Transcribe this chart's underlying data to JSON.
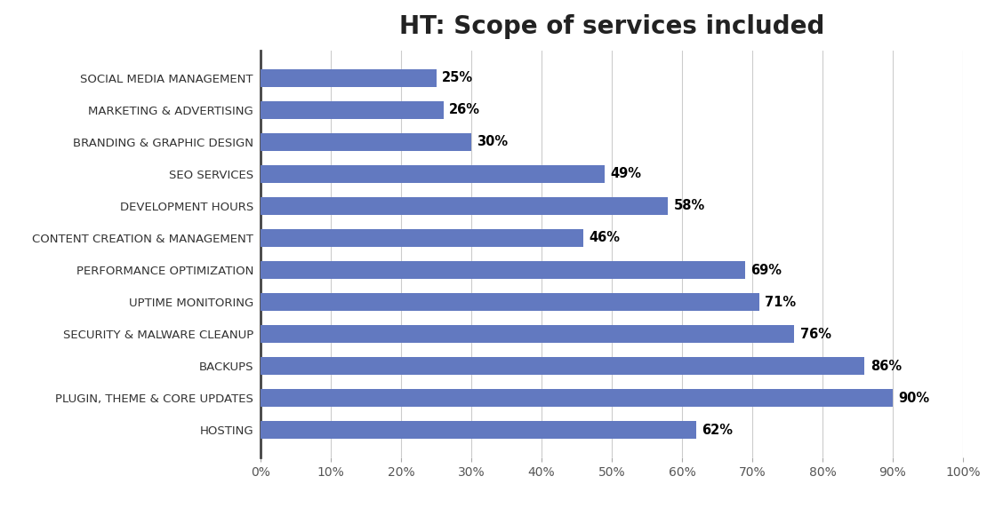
{
  "title": "HT: Scope of services included",
  "categories": [
    "HOSTING",
    "PLUGIN, THEME & CORE UPDATES",
    "BACKUPS",
    "SECURITY & MALWARE CLEANUP",
    "UPTIME MONITORING",
    "PERFORMANCE OPTIMIZATION",
    "CONTENT CREATION & MANAGEMENT",
    "DEVELOPMENT HOURS",
    "SEO SERVICES",
    "BRANDING & GRAPHIC DESIGN",
    "MARKETING & ADVERTISING",
    "SOCIAL MEDIA MANAGEMENT"
  ],
  "values": [
    62,
    90,
    86,
    76,
    71,
    69,
    46,
    58,
    49,
    30,
    26,
    25
  ],
  "bar_color": "#6279C0",
  "background_color": "#ffffff",
  "xlim": [
    0,
    100
  ],
  "xtick_values": [
    0,
    10,
    20,
    30,
    40,
    50,
    60,
    70,
    80,
    90,
    100
  ],
  "title_fontsize": 20,
  "label_fontsize": 9.5,
  "value_fontsize": 10.5,
  "tick_fontsize": 10,
  "bar_height": 0.55
}
